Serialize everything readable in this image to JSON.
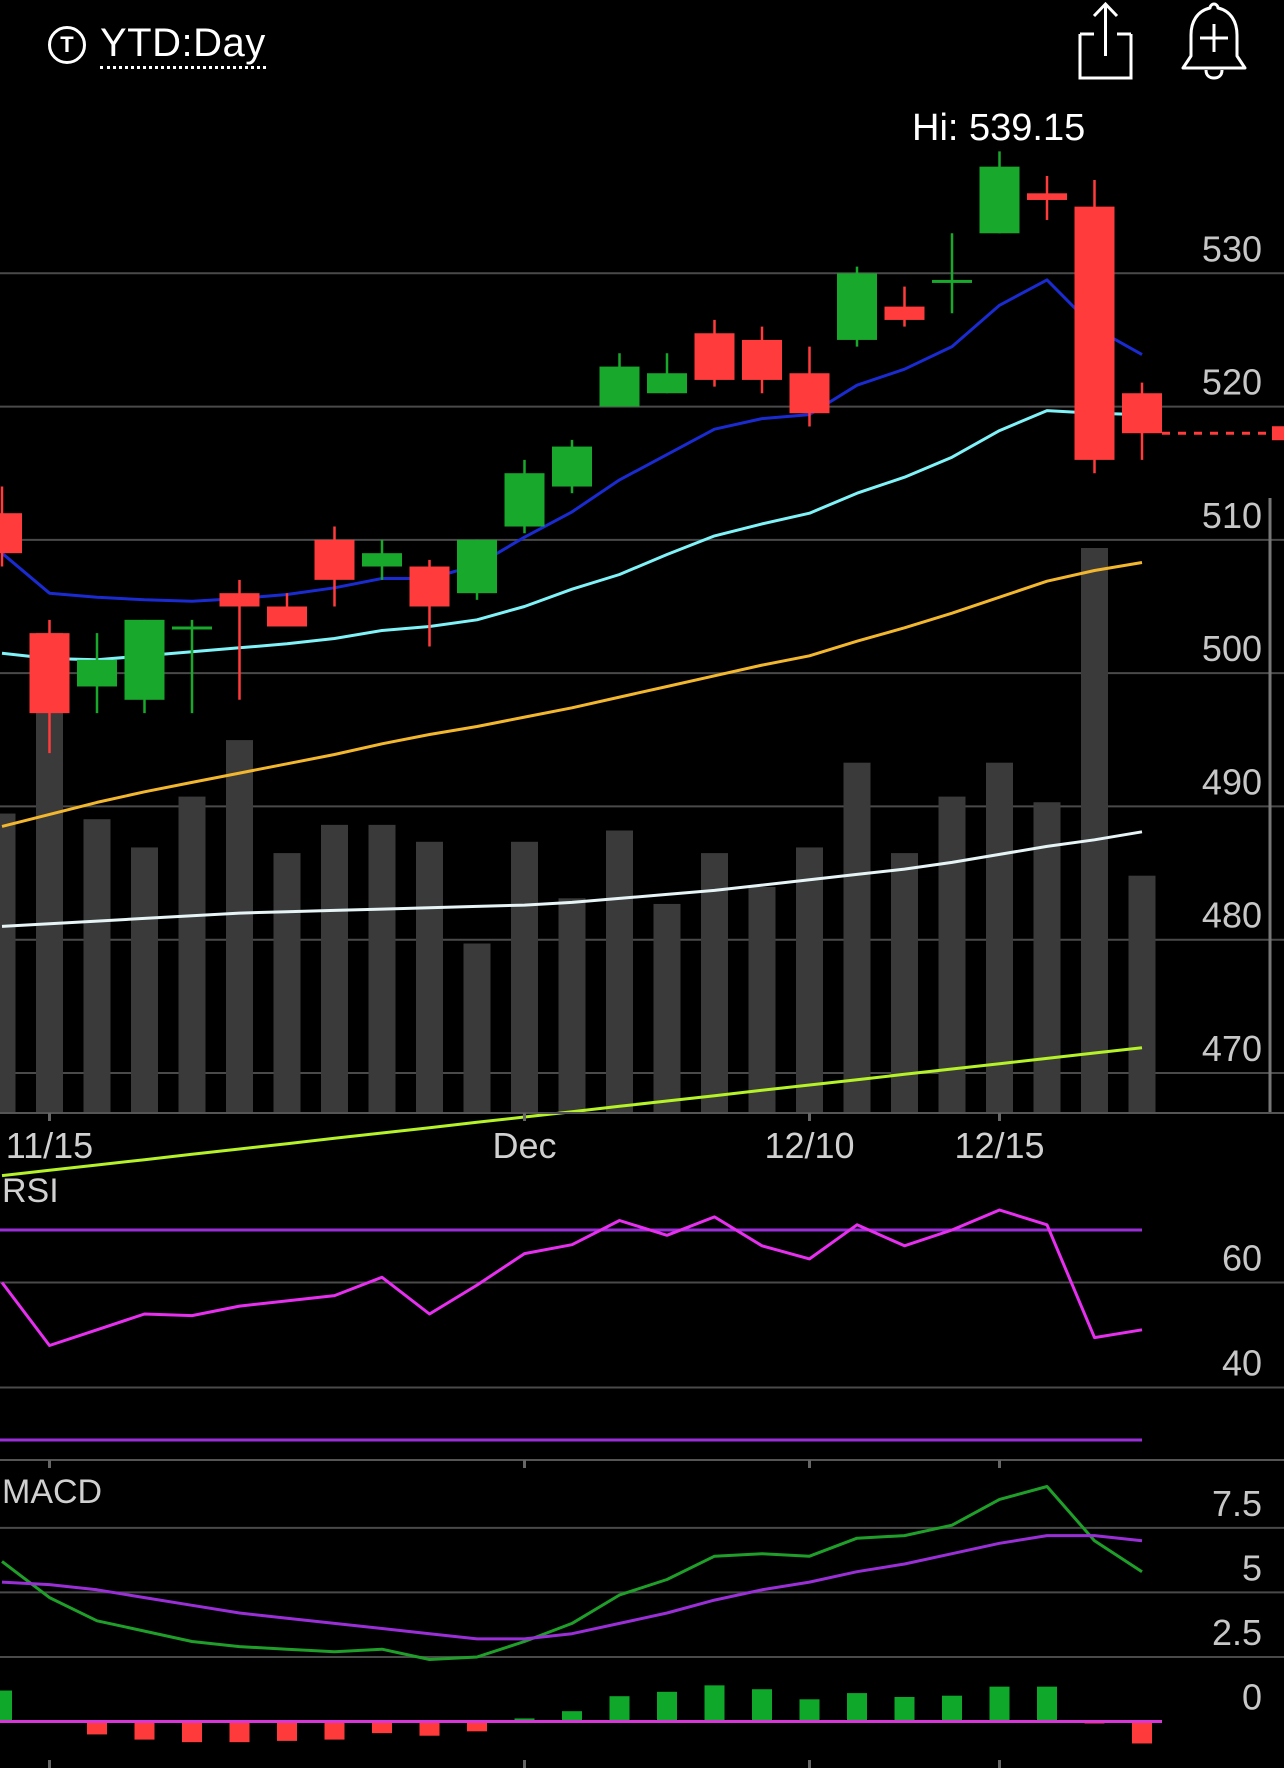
{
  "header": {
    "period_icon": "T",
    "period_label": "YTD:Day",
    "share_icon": "share-icon",
    "alert_icon": "bell-plus-icon"
  },
  "chart_data": [
    {
      "type": "candlestick",
      "title": "",
      "annotation": "Hi: 539.15",
      "y_ticks": [
        530,
        520,
        510,
        500,
        490,
        480,
        470
      ],
      "ylim": [
        467,
        543
      ],
      "x_ticks": [
        {
          "label": "11/15",
          "index": 1
        },
        {
          "label": "Dec",
          "index": 11
        },
        {
          "label": "12/10",
          "index": 17
        },
        {
          "label": "12/15",
          "index": 21
        }
      ],
      "candles": [
        {
          "o": 512,
          "h": 514,
          "l": 508,
          "c": 509
        },
        {
          "o": 503,
          "h": 504,
          "l": 494,
          "c": 497
        },
        {
          "o": 499,
          "h": 503,
          "l": 497,
          "c": 501
        },
        {
          "o": 498,
          "h": 504,
          "l": 497,
          "c": 504
        },
        {
          "o": 503.5,
          "h": 504,
          "l": 497,
          "c": 503.5
        },
        {
          "o": 506,
          "h": 507,
          "l": 498,
          "c": 505
        },
        {
          "o": 505,
          "h": 506,
          "l": 504,
          "c": 503.5
        },
        {
          "o": 510,
          "h": 511,
          "l": 505,
          "c": 507
        },
        {
          "o": 508,
          "h": 510,
          "l": 507,
          "c": 509
        },
        {
          "o": 508,
          "h": 508.5,
          "l": 502,
          "c": 505
        },
        {
          "o": 506,
          "h": 510,
          "l": 505.5,
          "c": 510
        },
        {
          "o": 511,
          "h": 516,
          "l": 510.5,
          "c": 515
        },
        {
          "o": 514,
          "h": 517.5,
          "l": 513.5,
          "c": 517
        },
        {
          "o": 520,
          "h": 524,
          "l": 520,
          "c": 523
        },
        {
          "o": 521,
          "h": 524,
          "l": 521,
          "c": 522.5
        },
        {
          "o": 525.5,
          "h": 526.5,
          "l": 521.5,
          "c": 522
        },
        {
          "o": 525,
          "h": 526,
          "l": 521,
          "c": 522
        },
        {
          "o": 522.5,
          "h": 524.5,
          "l": 518.5,
          "c": 519.5
        },
        {
          "o": 525,
          "h": 530.5,
          "l": 524.5,
          "c": 530
        },
        {
          "o": 527.5,
          "h": 529,
          "l": 526,
          "c": 526.5
        },
        {
          "o": 529.5,
          "h": 533,
          "l": 527,
          "c": 529.5
        },
        {
          "o": 533,
          "h": 539.15,
          "l": 533,
          "c": 538
        },
        {
          "o": 536,
          "h": 537.3,
          "l": 534,
          "c": 535.5
        },
        {
          "o": 535,
          "h": 537,
          "l": 515,
          "c": 516
        },
        {
          "o": 521,
          "h": 521.8,
          "l": 516,
          "c": 518
        }
      ],
      "last_price_line": 518,
      "moving_averages": [
        {
          "color": "#1a2bd1",
          "values": [
            509,
            506,
            505.7,
            505.5,
            505.4,
            505.6,
            505.9,
            506.4,
            507.1,
            507.1,
            508.1,
            510.2,
            512.1,
            514.5,
            516.4,
            518.3,
            519.1,
            519.4,
            521.6,
            522.8,
            524.5,
            527.6,
            529.5,
            525.9,
            523.9
          ]
        },
        {
          "color": "#7ff3f8",
          "values": [
            501.5,
            501.1,
            501.0,
            501.3,
            501.6,
            501.9,
            502.2,
            502.6,
            503.2,
            503.5,
            504.0,
            505.0,
            506.3,
            507.4,
            508.9,
            510.3,
            511.2,
            512.0,
            513.5,
            514.7,
            516.2,
            518.2,
            519.7,
            519.5,
            519.4
          ]
        },
        {
          "color": "#f3b72e",
          "values": [
            488.5,
            489.4,
            490.3,
            491.1,
            491.8,
            492.5,
            493.2,
            493.9,
            494.7,
            495.4,
            496.0,
            496.7,
            497.4,
            498.2,
            499.0,
            499.8,
            500.6,
            501.3,
            502.4,
            503.4,
            504.5,
            505.7,
            506.9,
            507.7,
            508.3
          ]
        },
        {
          "color": "#e6f4f6",
          "values": [
            481.0,
            481.2,
            481.4,
            481.6,
            481.8,
            482.0,
            482.1,
            482.2,
            482.3,
            482.4,
            482.5,
            482.6,
            482.8,
            483.1,
            483.4,
            483.7,
            484.1,
            484.5,
            484.9,
            485.3,
            485.8,
            486.4,
            487.0,
            487.5,
            488.1
          ]
        },
        {
          "color": "#b5f227",
          "values": [
            462.3,
            462.7,
            463.1,
            463.5,
            463.9,
            464.3,
            464.7,
            465.1,
            465.5,
            465.9,
            466.3,
            466.7,
            467.1,
            467.5,
            467.9,
            468.3,
            468.7,
            469.1,
            469.5,
            469.9,
            470.3,
            470.7,
            471.1,
            471.5,
            471.9
          ]
        }
      ],
      "volume_relative": [
        0.53,
        0.85,
        0.52,
        0.47,
        0.56,
        0.66,
        0.46,
        0.51,
        0.51,
        0.48,
        0.3,
        0.48,
        0.38,
        0.5,
        0.37,
        0.46,
        0.4,
        0.47,
        0.62,
        0.46,
        0.56,
        0.62,
        0.55,
        1.0,
        0.42
      ]
    },
    {
      "type": "line",
      "title": "RSI",
      "y_ticks": [
        60,
        40
      ],
      "ylim": [
        30,
        70
      ],
      "bands": [
        70,
        30
      ],
      "band_color": "#9a2fd8",
      "color": "#e72ff0",
      "values": [
        60,
        48,
        51,
        54,
        53.7,
        55.5,
        56.5,
        57.5,
        61,
        54,
        59.5,
        65.5,
        67.2,
        71.8,
        69,
        72.5,
        67,
        64.5,
        71,
        67,
        70,
        73.8,
        71,
        49.5,
        51
      ]
    },
    {
      "type": "line",
      "title": "MACD",
      "y_ticks": [
        7.5,
        5,
        2.5,
        0
      ],
      "ylim": [
        -1.8,
        8.5
      ],
      "series": [
        {
          "color": "#1f9f2a",
          "values": [
            6.2,
            4.8,
            3.9,
            3.5,
            3.1,
            2.9,
            2.8,
            2.7,
            2.8,
            2.4,
            2.5,
            3.1,
            3.8,
            4.9,
            5.5,
            6.4,
            6.5,
            6.4,
            7.1,
            7.2,
            7.6,
            8.6,
            9.1,
            7.0,
            5.8
          ]
        },
        {
          "color": "#9a2fd8",
          "values": [
            5.4,
            5.3,
            5.1,
            4.8,
            4.5,
            4.2,
            4.0,
            3.8,
            3.6,
            3.4,
            3.2,
            3.2,
            3.4,
            3.8,
            4.2,
            4.7,
            5.1,
            5.4,
            5.8,
            6.1,
            6.5,
            6.9,
            7.2,
            7.2,
            7.0
          ]
        }
      ],
      "histogram": [
        1.2,
        0.05,
        -0.5,
        -0.7,
        -0.8,
        -0.8,
        -0.75,
        -0.7,
        -0.45,
        -0.55,
        -0.38,
        0.12,
        0.4,
        0.98,
        1.15,
        1.4,
        1.25,
        0.86,
        1.1,
        0.95,
        1.0,
        1.35,
        1.35,
        -0.02,
        -0.85
      ],
      "zero_color": "#d836d8",
      "pos_color": "#0fa82a",
      "neg_color": "#ff3a3a"
    }
  ],
  "colors": {
    "up": "#18a82b",
    "down": "#ff3b3b",
    "grid": "#4a4a4a",
    "volume": "#3a3a3a"
  }
}
